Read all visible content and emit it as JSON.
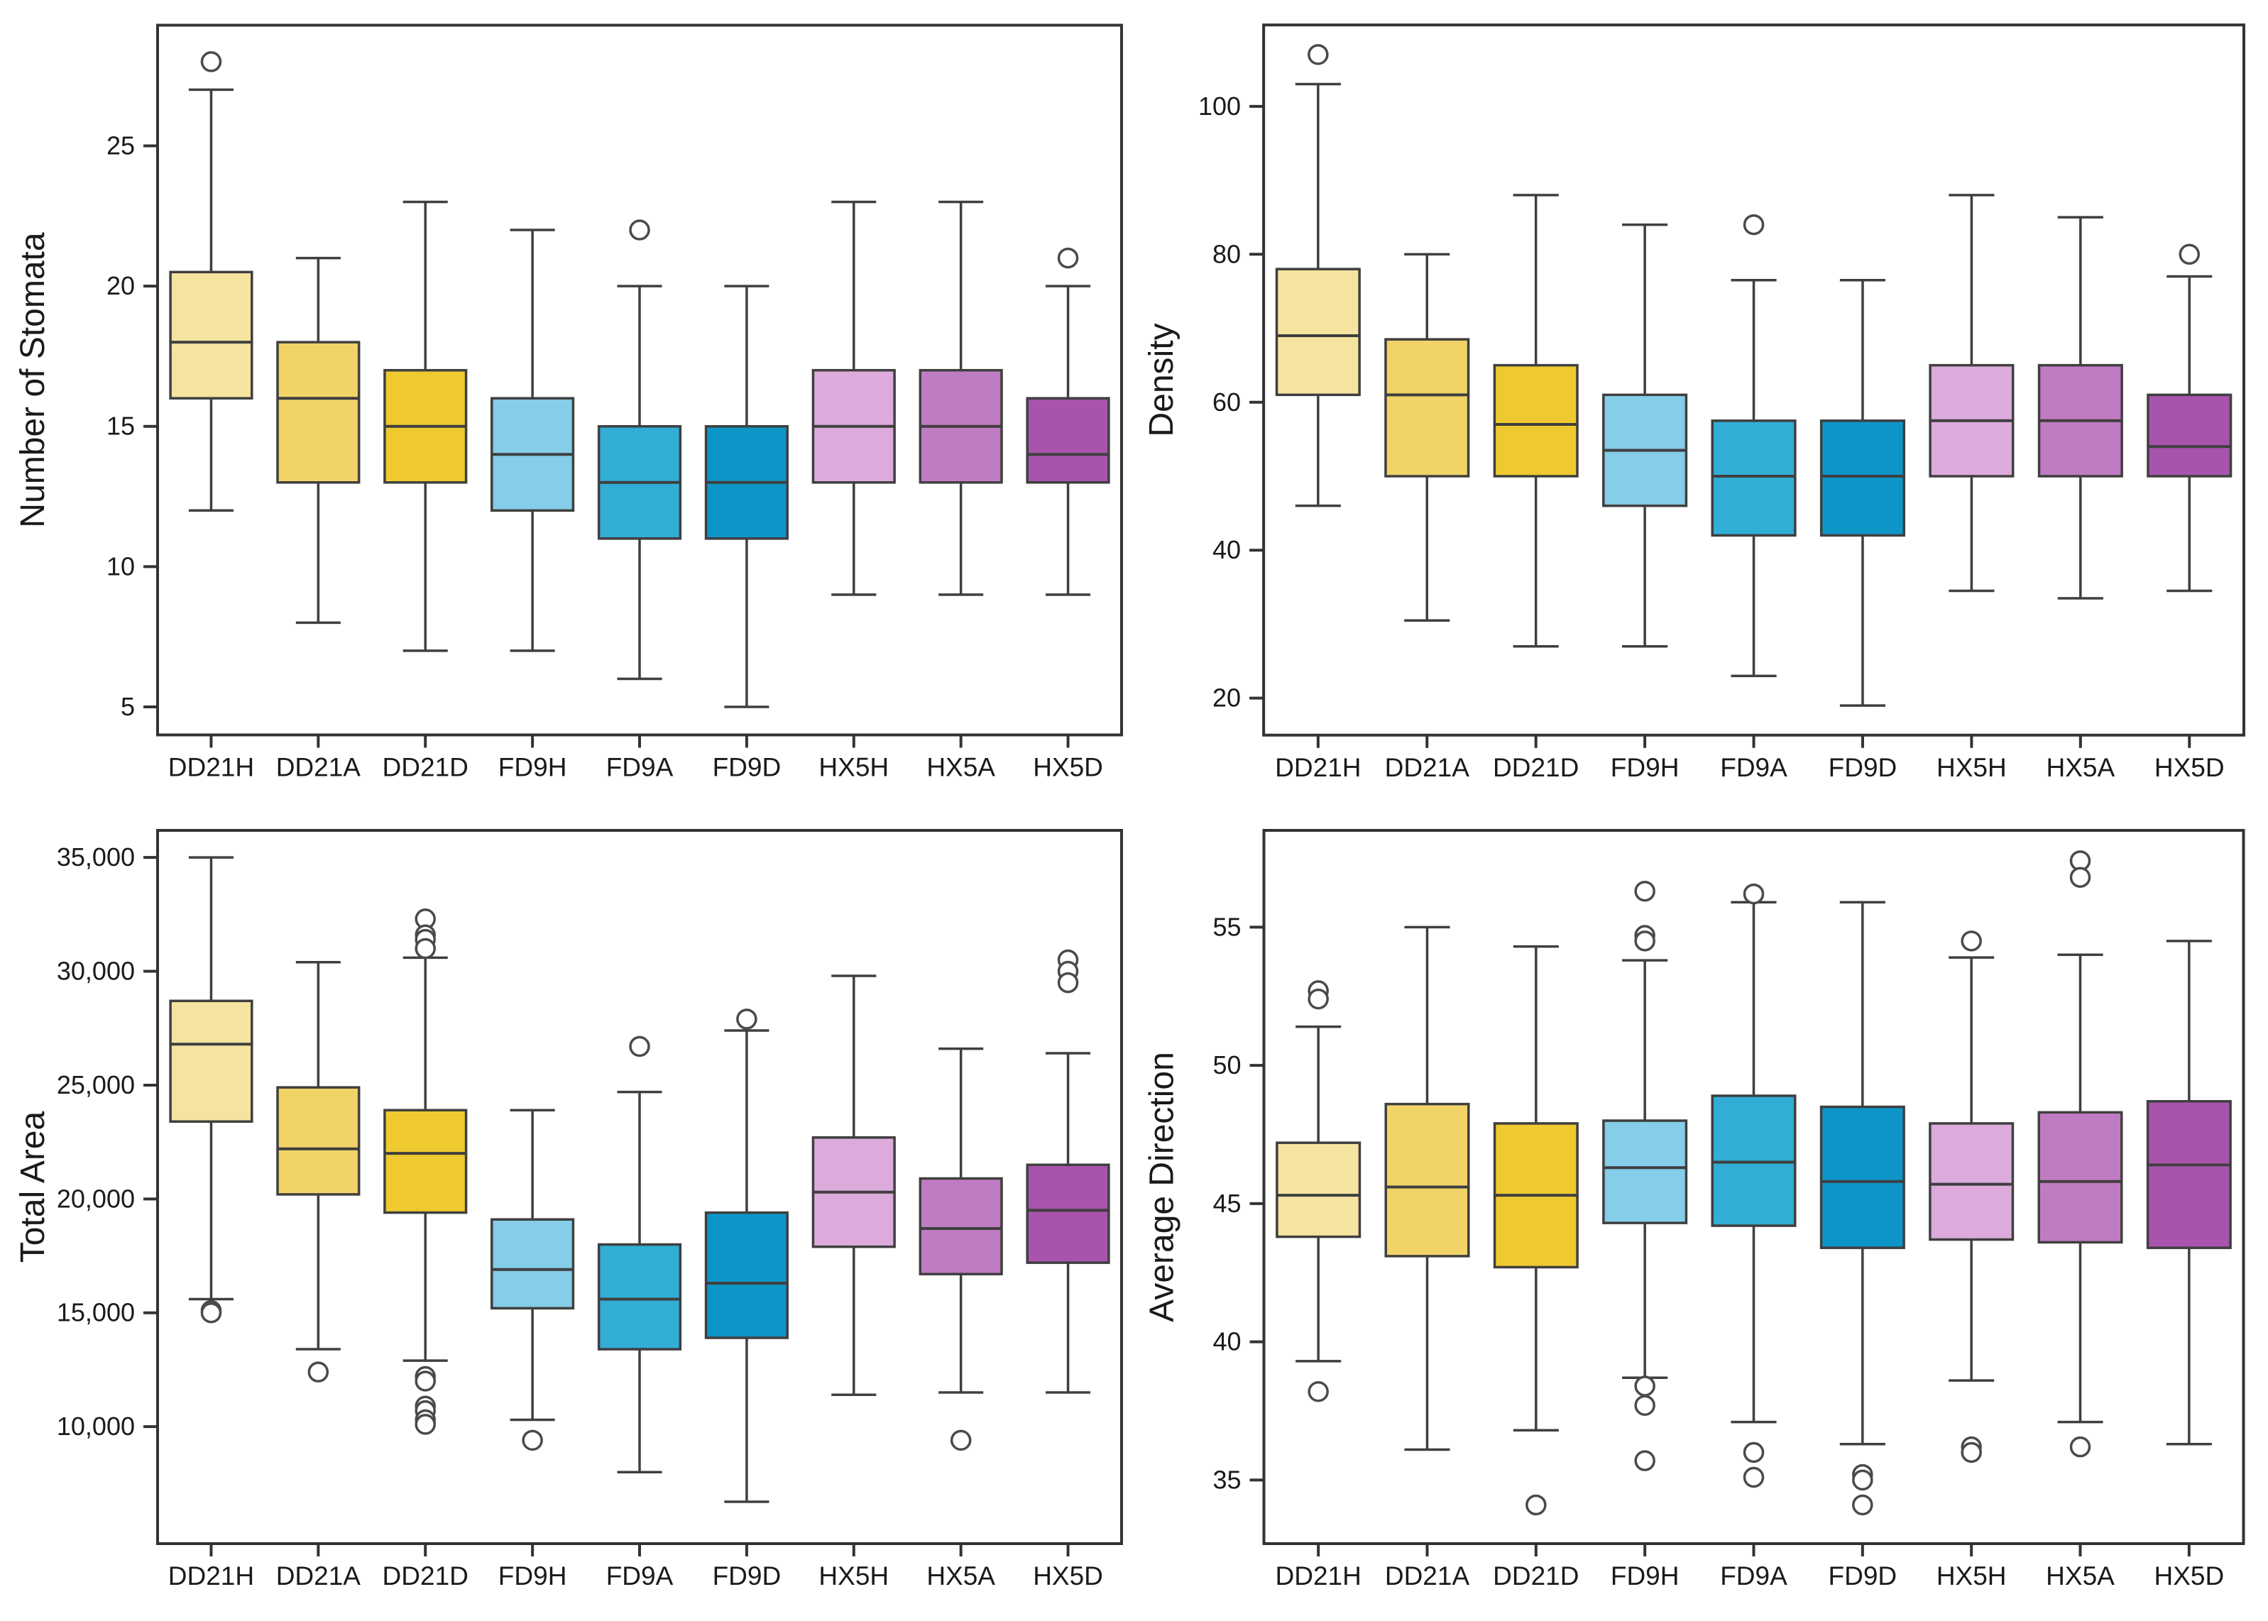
{
  "figure": {
    "background": "#ffffff",
    "axis_color": "#333333",
    "box_edge_color": "#3f3f3f",
    "outlier_color": "#4a4a4a"
  },
  "categories": [
    "DD21H",
    "DD21A",
    "DD21D",
    "FD9H",
    "FD9A",
    "FD9D",
    "HX5H",
    "HX5A",
    "HX5D"
  ],
  "category_colors": [
    "#F5E3A0",
    "#F2D368",
    "#EEC92F",
    "#85CDE8",
    "#31ADD6",
    "#0E95C7",
    "#DCABDC",
    "#C07CC3",
    "#A854AD"
  ],
  "chart_data": [
    {
      "type": "boxplot",
      "title": "",
      "ylabel": "Number of Stomata",
      "xlabel": "",
      "ylim": [
        4.0,
        29.3
      ],
      "grid": false,
      "yticks": [
        {
          "v": 5,
          "label": "5"
        },
        {
          "v": 10,
          "label": "10"
        },
        {
          "v": 15,
          "label": "15"
        },
        {
          "v": 20,
          "label": "20"
        },
        {
          "v": 25,
          "label": "25"
        }
      ],
      "categories": [
        "DD21H",
        "DD21A",
        "DD21D",
        "FD9H",
        "FD9A",
        "FD9D",
        "HX5H",
        "HX5A",
        "HX5D"
      ],
      "boxes": [
        {
          "lo": 12,
          "q1": 16,
          "med": 18,
          "q3": 20.5,
          "hi": 27,
          "outliers": [
            28
          ]
        },
        {
          "lo": 8,
          "q1": 13,
          "med": 16,
          "q3": 18,
          "hi": 21,
          "outliers": []
        },
        {
          "lo": 7,
          "q1": 13,
          "med": 15,
          "q3": 17,
          "hi": 23,
          "outliers": []
        },
        {
          "lo": 7,
          "q1": 12,
          "med": 14,
          "q3": 16,
          "hi": 22,
          "outliers": []
        },
        {
          "lo": 6,
          "q1": 11,
          "med": 13,
          "q3": 15,
          "hi": 20,
          "outliers": [
            22
          ]
        },
        {
          "lo": 5,
          "q1": 11,
          "med": 13,
          "q3": 15,
          "hi": 20,
          "outliers": []
        },
        {
          "lo": 9,
          "q1": 13,
          "med": 15,
          "q3": 17,
          "hi": 23,
          "outliers": []
        },
        {
          "lo": 9,
          "q1": 13,
          "med": 15,
          "q3": 17,
          "hi": 23,
          "outliers": []
        },
        {
          "lo": 9,
          "q1": 13,
          "med": 14,
          "q3": 16,
          "hi": 20,
          "outliers": [
            21
          ]
        }
      ]
    },
    {
      "type": "boxplot",
      "title": "",
      "ylabel": "Density",
      "xlabel": "",
      "ylim": [
        15,
        111
      ],
      "grid": false,
      "yticks": [
        {
          "v": 20,
          "label": "20"
        },
        {
          "v": 40,
          "label": "40"
        },
        {
          "v": 60,
          "label": "60"
        },
        {
          "v": 80,
          "label": "80"
        },
        {
          "v": 100,
          "label": "100"
        }
      ],
      "categories": [
        "DD21H",
        "DD21A",
        "DD21D",
        "FD9H",
        "FD9A",
        "FD9D",
        "HX5H",
        "HX5A",
        "HX5D"
      ],
      "boxes": [
        {
          "lo": 46,
          "q1": 61,
          "med": 69,
          "q3": 78,
          "hi": 103,
          "outliers": [
            107
          ]
        },
        {
          "lo": 30.5,
          "q1": 50,
          "med": 61,
          "q3": 68.5,
          "hi": 80,
          "outliers": []
        },
        {
          "lo": 27,
          "q1": 50,
          "med": 57,
          "q3": 65,
          "hi": 88,
          "outliers": []
        },
        {
          "lo": 27,
          "q1": 46,
          "med": 53.5,
          "q3": 61,
          "hi": 84,
          "outliers": []
        },
        {
          "lo": 23,
          "q1": 42,
          "med": 50,
          "q3": 57.5,
          "hi": 76.5,
          "outliers": [
            84
          ]
        },
        {
          "lo": 19,
          "q1": 42,
          "med": 50,
          "q3": 57.5,
          "hi": 76.5,
          "outliers": []
        },
        {
          "lo": 34.5,
          "q1": 50,
          "med": 57.5,
          "q3": 65,
          "hi": 88,
          "outliers": []
        },
        {
          "lo": 33.5,
          "q1": 50,
          "med": 57.5,
          "q3": 65,
          "hi": 85,
          "outliers": []
        },
        {
          "lo": 34.5,
          "q1": 50,
          "med": 54,
          "q3": 61,
          "hi": 77,
          "outliers": [
            80
          ]
        }
      ]
    },
    {
      "type": "boxplot",
      "title": "",
      "ylabel": "Total Area",
      "xlabel": "",
      "ylim": [
        4860,
        36190
      ],
      "grid": false,
      "yticks": [
        {
          "v": 10000,
          "label": "10,000"
        },
        {
          "v": 15000,
          "label": "15,000"
        },
        {
          "v": 20000,
          "label": "20,000"
        },
        {
          "v": 25000,
          "label": "25,000"
        },
        {
          "v": 30000,
          "label": "30,000"
        },
        {
          "v": 35000,
          "label": "35,000"
        }
      ],
      "categories": [
        "DD21H",
        "DD21A",
        "DD21D",
        "FD9H",
        "FD9A",
        "FD9D",
        "HX5H",
        "HX5A",
        "HX5D"
      ],
      "boxes": [
        {
          "lo": 15600,
          "q1": 23400,
          "med": 26800,
          "q3": 28700,
          "hi": 35000,
          "outliers": [
            15100,
            15000
          ]
        },
        {
          "lo": 13400,
          "q1": 20200,
          "med": 22200,
          "q3": 24900,
          "hi": 30400,
          "outliers": [
            12400
          ]
        },
        {
          "lo": 12900,
          "q1": 19400,
          "med": 22000,
          "q3": 23900,
          "hi": 30600,
          "outliers": [
            32300,
            31600,
            31400,
            31000,
            12200,
            12000,
            10900,
            10700,
            10300,
            10100
          ]
        },
        {
          "lo": 10300,
          "q1": 15200,
          "med": 16900,
          "q3": 19100,
          "hi": 23900,
          "outliers": [
            9400
          ]
        },
        {
          "lo": 8000,
          "q1": 13400,
          "med": 15600,
          "q3": 18000,
          "hi": 24700,
          "outliers": [
            26700
          ]
        },
        {
          "lo": 6700,
          "q1": 13900,
          "med": 16300,
          "q3": 19400,
          "hi": 27400,
          "outliers": [
            27900
          ]
        },
        {
          "lo": 11400,
          "q1": 17900,
          "med": 20300,
          "q3": 22700,
          "hi": 29800,
          "outliers": []
        },
        {
          "lo": 11500,
          "q1": 16700,
          "med": 18700,
          "q3": 20900,
          "hi": 26600,
          "outliers": [
            9400
          ]
        },
        {
          "lo": 11500,
          "q1": 17200,
          "med": 19500,
          "q3": 21500,
          "hi": 26400,
          "outliers": [
            30500,
            30000,
            29500
          ]
        }
      ]
    },
    {
      "type": "boxplot",
      "title": "",
      "ylabel": "Average Direction",
      "xlabel": "",
      "ylim": [
        32.7,
        58.5
      ],
      "grid": false,
      "yticks": [
        {
          "v": 35,
          "label": "35"
        },
        {
          "v": 40,
          "label": "40"
        },
        {
          "v": 45,
          "label": "45"
        },
        {
          "v": 50,
          "label": "50"
        },
        {
          "v": 55,
          "label": "55"
        }
      ],
      "categories": [
        "DD21H",
        "DD21A",
        "DD21D",
        "FD9H",
        "FD9A",
        "FD9D",
        "HX5H",
        "HX5A",
        "HX5D"
      ],
      "boxes": [
        {
          "lo": 39.3,
          "q1": 43.8,
          "med": 45.3,
          "q3": 47.2,
          "hi": 51.4,
          "outliers": [
            52.7,
            52.4,
            38.2
          ]
        },
        {
          "lo": 36.1,
          "q1": 43.1,
          "med": 45.6,
          "q3": 48.6,
          "hi": 55.0,
          "outliers": []
        },
        {
          "lo": 36.8,
          "q1": 42.7,
          "med": 45.3,
          "q3": 47.9,
          "hi": 54.3,
          "outliers": [
            34.1
          ]
        },
        {
          "lo": 38.7,
          "q1": 44.3,
          "med": 46.3,
          "q3": 48.0,
          "hi": 53.8,
          "outliers": [
            56.3,
            54.7,
            54.5,
            38.4,
            37.7,
            35.7
          ]
        },
        {
          "lo": 37.1,
          "q1": 44.2,
          "med": 46.5,
          "q3": 48.9,
          "hi": 55.9,
          "outliers": [
            56.2,
            36.0,
            35.1
          ]
        },
        {
          "lo": 36.3,
          "q1": 43.4,
          "med": 45.8,
          "q3": 48.5,
          "hi": 55.9,
          "outliers": [
            35.2,
            35.0,
            34.1
          ]
        },
        {
          "lo": 38.6,
          "q1": 43.7,
          "med": 45.7,
          "q3": 47.9,
          "hi": 53.9,
          "outliers": [
            54.5,
            36.2,
            36.0
          ]
        },
        {
          "lo": 37.1,
          "q1": 43.6,
          "med": 45.8,
          "q3": 48.3,
          "hi": 54.0,
          "outliers": [
            57.4,
            56.8,
            36.2
          ]
        },
        {
          "lo": 36.3,
          "q1": 43.4,
          "med": 46.4,
          "q3": 48.7,
          "hi": 54.5,
          "outliers": []
        }
      ]
    }
  ]
}
